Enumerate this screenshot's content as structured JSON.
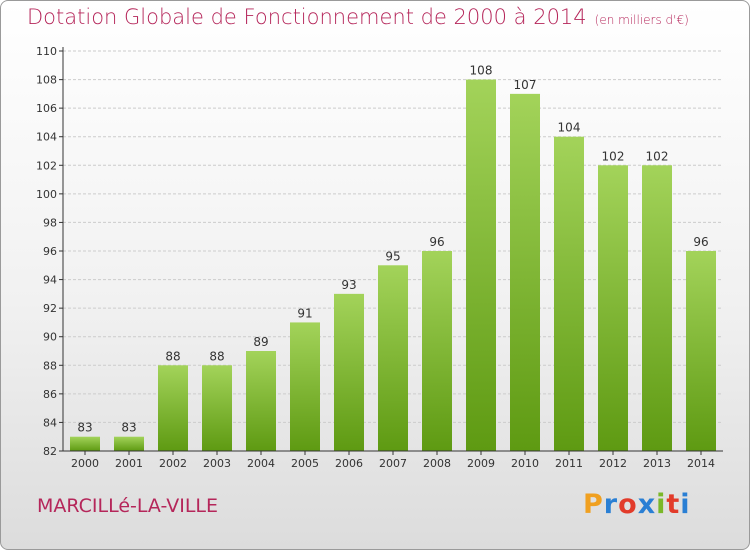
{
  "header": {
    "title": "Dotation Globale de Fonctionnement de 2000 à 2014",
    "unit": "(en milliers d'€)"
  },
  "footer": {
    "commune": "MARCILLé-LA-VILLE",
    "logo_text": "Proxiti",
    "logo_colors": [
      "#f0a020",
      "#2a7fd4",
      "#e23b2a",
      "#2a7fd4",
      "#7ab829",
      "#e23b2a",
      "#2a7fd4"
    ]
  },
  "colors": {
    "title": "#b5265a",
    "bar_top": "#a3d35a",
    "bar_bottom": "#5e9a12",
    "grid": "#cccccc",
    "axis": "#333333"
  },
  "chart_data": {
    "type": "bar",
    "categories": [
      "2000",
      "2001",
      "2002",
      "2003",
      "2004",
      "2005",
      "2006",
      "2007",
      "2008",
      "2009",
      "2010",
      "2011",
      "2012",
      "2013",
      "2014"
    ],
    "values": [
      83,
      83,
      88,
      88,
      89,
      91,
      93,
      95,
      96,
      108,
      107,
      104,
      102,
      102,
      96
    ],
    "data_labels": [
      "83",
      "83",
      "88",
      "88",
      "89",
      "91",
      "93",
      "95",
      "96",
      "108",
      "107",
      "104",
      "102",
      "102",
      "96"
    ],
    "y_ticks": [
      82,
      84,
      86,
      88,
      90,
      92,
      94,
      96,
      98,
      100,
      102,
      104,
      106,
      108,
      110
    ],
    "ylim": [
      82,
      110
    ],
    "grid": true,
    "legend": "none"
  }
}
